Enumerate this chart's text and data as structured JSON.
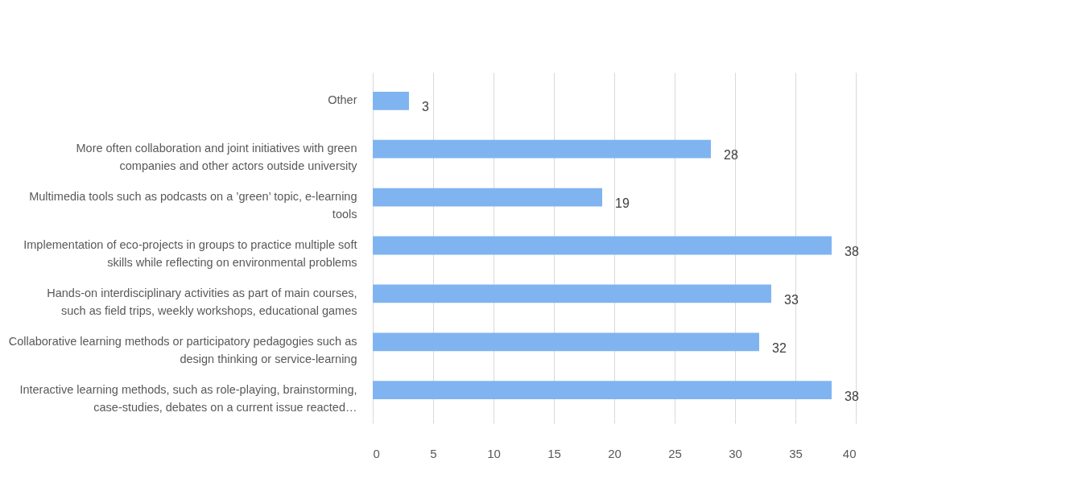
{
  "chart_data": {
    "type": "bar",
    "orientation": "horizontal",
    "categories": [
      "Other",
      "More often collaboration and joint initiatives with green companies and other actors outside university",
      "Multimedia tools such as podcasts on a ’green’ topic, e-learning tools",
      "Implementation of eco-projects in groups to practice multiple soft skills while reflecting on environmental problems",
      "Hands-on interdisciplinary activities as part of main courses, such as field trips, weekly workshops, educational games",
      "Collaborative learning methods or participatory pedagogies such as design thinking or service-learning",
      "Interactive learning methods, such as role-playing, brainstorming, case-studies, debates on a current issue reacted…"
    ],
    "values": [
      3,
      28,
      19,
      38,
      33,
      32,
      38
    ],
    "color": "#80b4f1",
    "xlim": [
      0,
      40
    ],
    "xticks": [
      0,
      5,
      10,
      15,
      20,
      25,
      30,
      35,
      40
    ],
    "grid": "x",
    "data_labels": true
  }
}
